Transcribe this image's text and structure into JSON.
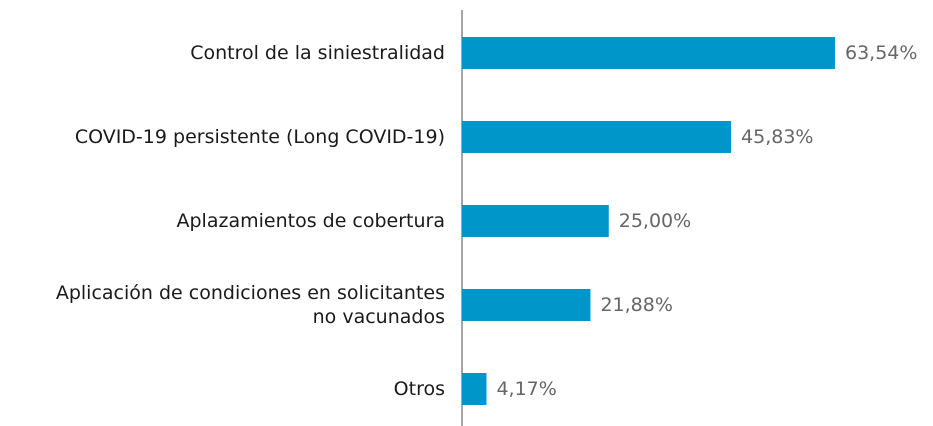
{
  "chart_data": {
    "type": "hbar",
    "categories": [
      "Control de la siniestralidad",
      "COVID-19 persistente (Long COVID-19)",
      "Aplazamientos de cobertura",
      "Aplicación de condiciones en solicitantes\nno vacunados",
      "Otros"
    ],
    "values": [
      63.54,
      45.83,
      25.0,
      21.88,
      4.17
    ],
    "value_labels": [
      "63,54%",
      "45,83%",
      "25,00%",
      "21,88%",
      "4,17%"
    ],
    "color": "#0096c9"
  }
}
